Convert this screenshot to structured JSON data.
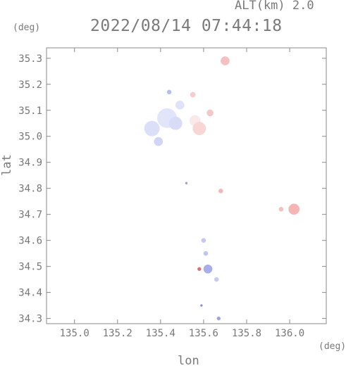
{
  "header": {
    "altitude": "ALT(km) 2.0",
    "datetime": "2022/08/14 07:44:18"
  },
  "axes": {
    "y_unit": "(deg)",
    "x_unit": "(deg)",
    "x_label": "lon",
    "y_label": "lat"
  },
  "chart_data": {
    "type": "scatter",
    "title": "2022/08/14 07:44:18",
    "xlabel": "lon",
    "ylabel": "lat",
    "xlim": [
      134.87,
      136.17
    ],
    "ylim": [
      34.28,
      35.34
    ],
    "x_ticks": [
      135.0,
      135.2,
      135.4,
      135.6,
      135.8,
      136.0
    ],
    "x_tick_labels": [
      "135.0",
      "135.2",
      "135.4",
      "135.6",
      "135.8",
      "136.0"
    ],
    "y_ticks": [
      34.3,
      34.4,
      34.5,
      34.6,
      34.7,
      34.8,
      34.9,
      35.0,
      35.1,
      35.2,
      35.3
    ],
    "y_tick_labels": [
      "34.3",
      "34.4",
      "34.5",
      "34.6",
      "34.7",
      "34.8",
      "34.9",
      "35.0",
      "35.1",
      "35.2",
      "35.3"
    ],
    "grid": false,
    "colors": {
      "approaching": "#aab0ee",
      "receding": "#f4b0b0",
      "axis": "#888888"
    },
    "series": [
      {
        "values": [
          {
            "x": 135.36,
            "y": 35.03,
            "r": 0.035,
            "c": "#dcdff8"
          },
          {
            "x": 135.43,
            "y": 35.07,
            "r": 0.045,
            "c": "#e2e4fa"
          },
          {
            "x": 135.47,
            "y": 35.05,
            "r": 0.03,
            "c": "#d8dcf7"
          },
          {
            "x": 135.39,
            "y": 34.98,
            "r": 0.02,
            "c": "#d0d4f5"
          },
          {
            "x": 135.44,
            "y": 35.17,
            "r": 0.01,
            "c": "#b8bcf0"
          },
          {
            "x": 135.49,
            "y": 35.12,
            "r": 0.02,
            "c": "#dfe2f9"
          },
          {
            "x": 135.56,
            "y": 35.06,
            "r": 0.025,
            "c": "#fbe8e8"
          },
          {
            "x": 135.58,
            "y": 35.03,
            "r": 0.03,
            "c": "#f8d6d6"
          },
          {
            "x": 135.55,
            "y": 35.16,
            "r": 0.012,
            "c": "#f4cccc"
          },
          {
            "x": 135.63,
            "y": 35.09,
            "r": 0.015,
            "c": "#f2c8c8"
          },
          {
            "x": 135.7,
            "y": 35.29,
            "r": 0.02,
            "c": "#f4c0c0"
          },
          {
            "x": 135.68,
            "y": 34.79,
            "r": 0.01,
            "c": "#f0b8b8"
          },
          {
            "x": 135.52,
            "y": 34.82,
            "r": 0.005,
            "c": "#9a9ee0"
          },
          {
            "x": 136.02,
            "y": 34.72,
            "r": 0.025,
            "c": "#f6b4b4"
          },
          {
            "x": 135.96,
            "y": 34.72,
            "r": 0.01,
            "c": "#f4c0c0"
          },
          {
            "x": 135.6,
            "y": 34.6,
            "r": 0.01,
            "c": "#c4c8f2"
          },
          {
            "x": 135.61,
            "y": 34.55,
            "r": 0.01,
            "c": "#c0c4f0"
          },
          {
            "x": 135.62,
            "y": 34.49,
            "r": 0.02,
            "c": "#a8aee8"
          },
          {
            "x": 135.58,
            "y": 34.49,
            "r": 0.008,
            "c": "#e07070"
          },
          {
            "x": 135.66,
            "y": 34.45,
            "r": 0.01,
            "c": "#c8ccf3"
          },
          {
            "x": 135.67,
            "y": 34.3,
            "r": 0.008,
            "c": "#9da2e2"
          },
          {
            "x": 135.59,
            "y": 34.35,
            "r": 0.004,
            "c": "#8a90da"
          }
        ]
      }
    ]
  }
}
